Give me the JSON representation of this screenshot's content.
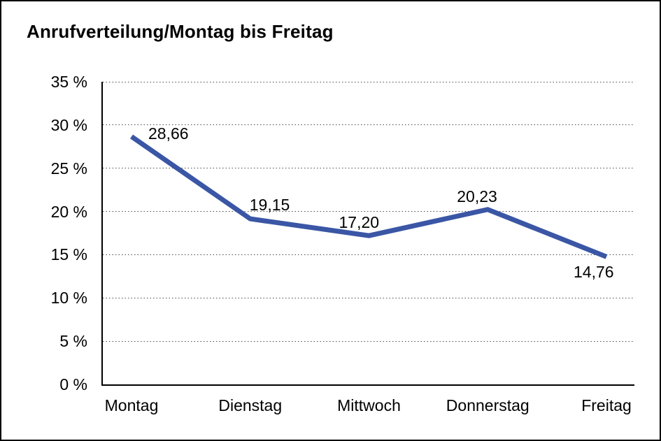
{
  "frame": {
    "background": "#ffffff",
    "border_color": "#000000"
  },
  "chart_data": {
    "type": "line",
    "title": "Anrufverteilung/Montag bis Freitag",
    "categories": [
      "Montag",
      "Dienstag",
      "Mittwoch",
      "Donnerstag",
      "Freitag"
    ],
    "values": [
      28.66,
      19.15,
      17.2,
      20.23,
      14.76
    ],
    "value_labels": [
      "28,66",
      "19,15",
      "17,20",
      "20,23",
      "14,76"
    ],
    "y_ticks": [
      {
        "value": 35,
        "label": "35 %"
      },
      {
        "value": 30,
        "label": "30 %"
      },
      {
        "value": 25,
        "label": "25 %"
      },
      {
        "value": 20,
        "label": "20 %"
      },
      {
        "value": 15,
        "label": "15 %"
      },
      {
        "value": 10,
        "label": "10 %"
      },
      {
        "value": 5,
        "label": "5 %"
      },
      {
        "value": 0,
        "label": "0 %"
      }
    ],
    "ylim": [
      0,
      35
    ],
    "xlabel": "",
    "ylabel": "",
    "grid": "dotted-horizontal",
    "legend": "none",
    "line_color": "#3a56a5",
    "text_color": "#000000"
  }
}
